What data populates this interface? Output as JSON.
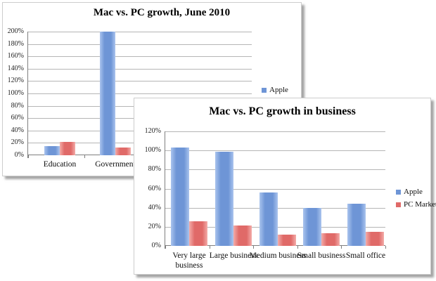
{
  "page": {
    "background": "#ffffff"
  },
  "chart_data": [
    {
      "id": "back",
      "type": "bar",
      "title": "Mac vs. PC growth, June 2010",
      "categories": [
        "Education",
        "Government"
      ],
      "series": [
        {
          "name": "Apple",
          "color": "#6e95d6",
          "color_light": "#aac4ee",
          "values": [
            15,
            200
          ]
        },
        {
          "name": "PC Market",
          "color": "#e06a68",
          "color_light": "#f3aca9",
          "values": [
            22,
            12
          ]
        }
      ],
      "ylim": [
        0,
        200
      ],
      "ytick_labels_top_to_bottom": [
        "200%",
        "180%",
        "160%",
        "140%",
        "120%",
        "100%",
        "80%",
        "60%",
        "40%",
        "20%",
        "0%"
      ],
      "grid": true,
      "legend_position": "right",
      "legend_visible_labels": [
        "Apple"
      ]
    },
    {
      "id": "front",
      "type": "bar",
      "title": "Mac vs. PC growth in business",
      "categories": [
        "Very large business",
        "Large business",
        "Medium business",
        "Small business",
        "Small office"
      ],
      "series": [
        {
          "name": "Apple",
          "color": "#6e95d6",
          "color_light": "#aac4ee",
          "values": [
            103,
            99,
            56,
            40,
            44
          ]
        },
        {
          "name": "PC Market",
          "color": "#e06a68",
          "color_light": "#f3aca9",
          "values": [
            26,
            21,
            12,
            13,
            15
          ]
        }
      ],
      "ylim": [
        0,
        120
      ],
      "ytick_labels_top_to_bottom": [
        "120%",
        "100%",
        "80%",
        "60%",
        "40%",
        "20%",
        "0%"
      ],
      "grid": true,
      "legend_position": "right",
      "legend_visible_labels": [
        "Apple",
        "PC Market"
      ]
    }
  ]
}
